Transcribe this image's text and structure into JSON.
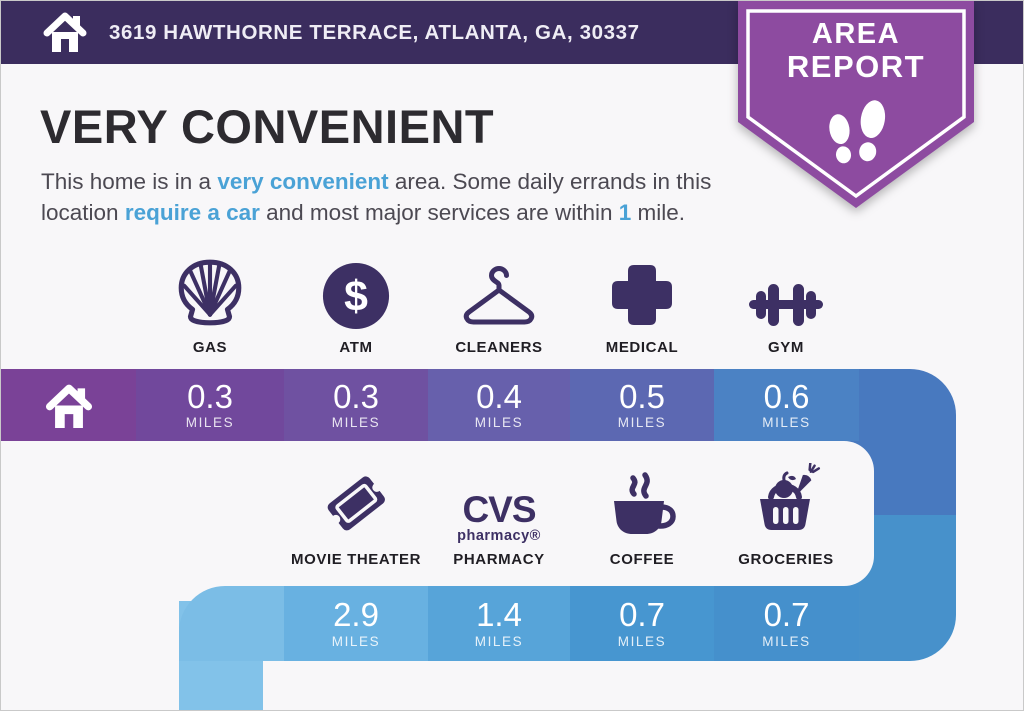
{
  "colors": {
    "page_bg": "#F8F7F9",
    "top_bar_bg": "#3B2D5E",
    "badge_purple": "#8D4BA0",
    "heading_text": "#2D2B30",
    "body_text": "#4C4952",
    "accent_blue": "#4AA2D6",
    "icon_purple": "#3D3064",
    "label_text": "#201E24",
    "band_text": "#FFFFFF",
    "turn_top": "#4879BF",
    "turn_bottom": "#4791CB",
    "left_strip": "#82C2E9",
    "row1_segments": [
      "#7A4297",
      "#71489C",
      "#6F51A1",
      "#6760AC",
      "#5C68B2",
      "#4B82C4"
    ],
    "row2_segments": [
      "#7BBDE6",
      "#68B1E1",
      "#57A4D9",
      "#4796D0",
      "#4590CC"
    ]
  },
  "address_bar": {
    "address": "3619 HAWTHORNE TERRACE, ATLANTA, GA, 30337"
  },
  "badge": {
    "line1": "AREA",
    "line2": "REPORT"
  },
  "headline": "VERY CONVENIENT",
  "description_parts": [
    {
      "text": "This home is in a "
    },
    {
      "text": "very convenient",
      "highlight": true
    },
    {
      "text": " area. Some daily errands in this location "
    },
    {
      "text": "require a car",
      "highlight": true
    },
    {
      "text": " and most major services are within "
    },
    {
      "text": "1",
      "highlight": true
    },
    {
      "text": " mile."
    }
  ],
  "row1": {
    "items": [
      {
        "icon": "shell-gas-icon",
        "label": "GAS",
        "distance": "0.3",
        "unit": "MILES"
      },
      {
        "icon": "atm-dollar-icon",
        "label": "ATM",
        "distance": "0.3",
        "unit": "MILES"
      },
      {
        "icon": "hanger-icon",
        "label": "CLEANERS",
        "distance": "0.4",
        "unit": "MILES"
      },
      {
        "icon": "medical-cross-icon",
        "label": "MEDICAL",
        "distance": "0.5",
        "unit": "MILES"
      },
      {
        "icon": "dumbbell-icon",
        "label": "GYM",
        "distance": "0.6",
        "unit": "MILES"
      }
    ]
  },
  "row2": {
    "items": [
      {
        "icon": "movie-ticket-icon",
        "label": "MOVIE THEATER",
        "distance": "2.9",
        "unit": "MILES"
      },
      {
        "icon": "cvs-pharmacy-logo",
        "label": "PHARMACY",
        "distance": "1.4",
        "unit": "MILES"
      },
      {
        "icon": "coffee-cup-icon",
        "label": "COFFEE",
        "distance": "0.7",
        "unit": "MILES"
      },
      {
        "icon": "grocery-basket-icon",
        "label": "GROCERIES",
        "distance": "0.7",
        "unit": "MILES"
      }
    ]
  },
  "cvs_logo": {
    "title": "CVS",
    "subtitle": "pharmacy®"
  }
}
